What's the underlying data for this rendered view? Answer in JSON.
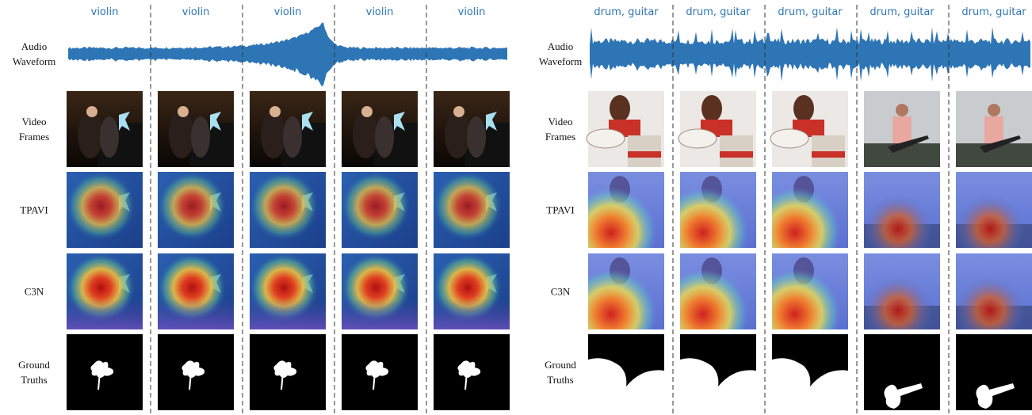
{
  "panels": [
    {
      "columns": [
        "violin",
        "violin",
        "violin",
        "violin",
        "violin"
      ],
      "row_labels": [
        "Audio Waveform",
        "Video Frames",
        "TPAVI",
        "C3N",
        "Ground Truths"
      ]
    },
    {
      "columns": [
        "drum, guitar",
        "drum, guitar",
        "drum, guitar",
        "drum, guitar",
        "drum, guitar"
      ],
      "row_labels": [
        "Audio Waveform",
        "Video Frames",
        "TPAVI",
        "C3N",
        "Ground Truths"
      ]
    }
  ]
}
